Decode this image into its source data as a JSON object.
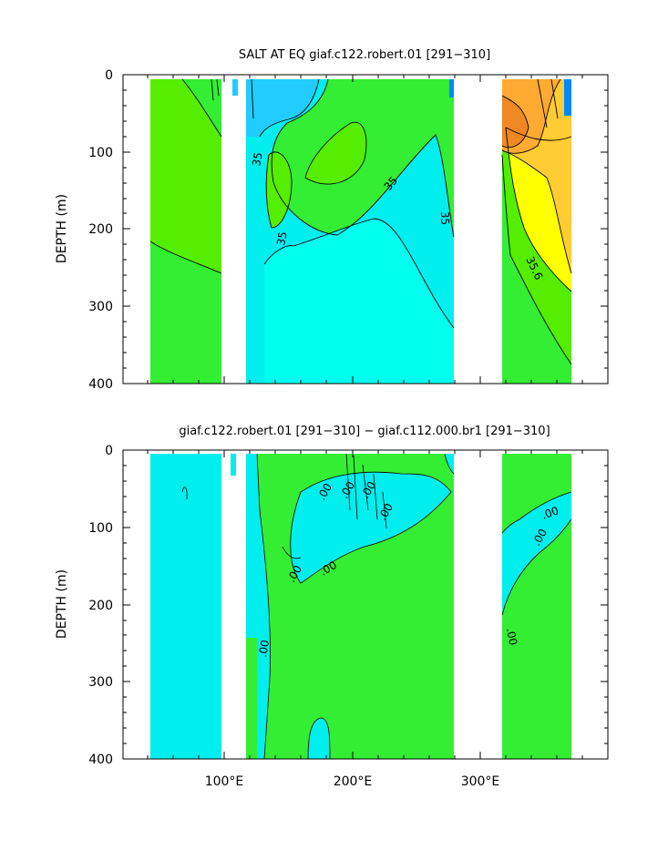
{
  "colors": {
    "green": "#33ee33",
    "lime": "#55ee00",
    "cyan": "#00ffee",
    "aqua": "#00eeee",
    "light_blue": "#22ccff",
    "blue": "#0088ff",
    "yellow": "#ffff00",
    "gold": "#ffcc33",
    "orange": "#ffaa33",
    "dark_orange": "#ee8822"
  },
  "chart_data": [
    {
      "type": "heatmap",
      "subtype": "filled-contour depth section",
      "title": "SALT AT EQ giaf.c122.robert.01 [291−310]",
      "xlabel": "",
      "ylabel": "DEPTH (m)",
      "xlim": [
        30,
        390
      ],
      "ylim": [
        400,
        0
      ],
      "y_ticks": [
        "0",
        "100",
        "200",
        "300",
        "400"
      ],
      "contour_labels": [
        "35",
        "35",
        "35",
        "35",
        "35.6"
      ],
      "grid": false
    },
    {
      "type": "heatmap",
      "subtype": "filled-contour depth section (difference)",
      "title": "giaf.c122.robert.01 [291−310] − giaf.c112.000.br1 [291−310]",
      "xlabel": "",
      "ylabel": "DEPTH (m)",
      "xlim": [
        30,
        390
      ],
      "ylim": [
        400,
        0
      ],
      "x_ticks": [
        "100°E",
        "200°E",
        "300°E"
      ],
      "y_ticks": [
        "0",
        "100",
        "200",
        "300",
        "400"
      ],
      "contour_labels": [
        ".00",
        ".00",
        ".00",
        ".00",
        ".00",
        ".00",
        ".00",
        ".00",
        ".00",
        ".00"
      ],
      "grid": false
    }
  ]
}
